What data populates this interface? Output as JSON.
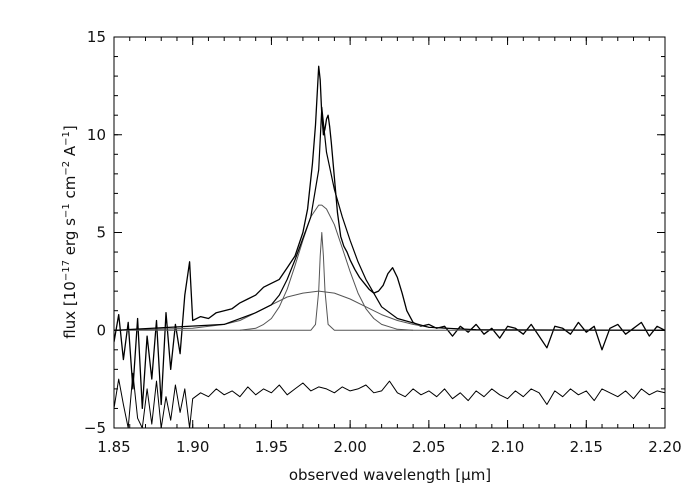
{
  "chart_data": {
    "type": "line",
    "title": "",
    "xlabel": "observed wavelength [μm]",
    "ylabel_parts": [
      "flux [10",
      "−17",
      " erg s",
      "−1",
      " cm",
      "−2",
      " A",
      "−1",
      "]"
    ],
    "xlim": [
      1.85,
      2.2
    ],
    "ylim": [
      -5,
      15
    ],
    "x_ticks": [
      1.85,
      1.9,
      1.95,
      2.0,
      2.05,
      2.1,
      2.15,
      2.2
    ],
    "x_tick_labels": [
      "1.85",
      "1.90",
      "1.95",
      "2.00",
      "2.05",
      "2.10",
      "2.15",
      "2.20"
    ],
    "y_ticks": [
      -5,
      0,
      5,
      10,
      15
    ],
    "y_tick_labels": [
      "−5",
      "0",
      "5",
      "10",
      "15"
    ],
    "grid": false,
    "legend": "none",
    "colors": {
      "observed": "#000000",
      "components": "#555555",
      "residual": "#000000"
    },
    "series": [
      {
        "x": [
          1.85,
          1.853,
          1.856,
          1.859,
          1.862,
          1.865,
          1.868,
          1.871,
          1.874,
          1.877,
          1.88,
          1.883,
          1.886,
          1.889,
          1.892,
          1.895,
          1.898,
          1.9,
          1.905,
          1.91,
          1.915,
          1.92,
          1.925,
          1.93,
          1.935,
          1.94,
          1.945,
          1.95,
          1.955,
          1.96,
          1.965,
          1.97,
          1.973,
          1.976,
          1.978,
          1.98,
          1.981,
          1.982,
          1.983,
          1.984,
          1.985,
          1.986,
          1.987,
          1.988,
          1.99,
          1.992,
          1.994,
          1.996,
          1.998,
          2.0,
          2.003,
          2.006,
          2.009,
          2.012,
          2.015,
          2.018,
          2.021,
          2.024,
          2.027,
          2.03,
          2.033,
          2.036,
          2.04,
          2.045,
          2.05,
          2.055,
          2.06,
          2.065,
          2.07,
          2.075,
          2.08,
          2.085,
          2.09,
          2.095,
          2.1,
          2.105,
          2.11,
          2.115,
          2.12,
          2.125,
          2.13,
          2.135,
          2.14,
          2.145,
          2.15,
          2.155,
          2.16,
          2.165,
          2.17,
          2.175,
          2.18,
          2.185,
          2.19,
          2.195,
          2.2
        ],
        "y": [
          -0.6,
          0.8,
          -1.5,
          0.4,
          -3.0,
          0.6,
          -4.0,
          -0.3,
          -2.5,
          0.5,
          -3.8,
          0.9,
          -2.0,
          0.3,
          -1.2,
          1.8,
          3.5,
          0.5,
          0.7,
          0.6,
          0.9,
          1.0,
          1.1,
          1.4,
          1.6,
          1.8,
          2.2,
          2.4,
          2.6,
          3.2,
          3.8,
          5.0,
          6.2,
          8.5,
          10.5,
          13.5,
          12.8,
          11.0,
          10.0,
          10.3,
          10.8,
          11.0,
          10.4,
          9.6,
          7.8,
          6.0,
          4.8,
          4.3,
          4.0,
          3.6,
          3.1,
          2.7,
          2.4,
          2.1,
          1.9,
          2.0,
          2.3,
          2.9,
          3.2,
          2.7,
          1.9,
          1.0,
          0.4,
          0.2,
          0.3,
          0.1,
          0.2,
          -0.3,
          0.2,
          -0.1,
          0.3,
          -0.2,
          0.1,
          -0.4,
          0.2,
          0.1,
          -0.2,
          0.3,
          -0.3,
          -0.9,
          0.2,
          0.1,
          -0.2,
          0.4,
          -0.1,
          0.2,
          -1.0,
          0.1,
          0.3,
          -0.2,
          0.1,
          0.4,
          -0.3,
          0.2,
          0.0
        ]
      },
      {
        "x": [
          1.85,
          1.9,
          1.92,
          1.93,
          1.94,
          1.95,
          1.96,
          1.97,
          1.98,
          1.99,
          2.0,
          2.01,
          2.02,
          2.03,
          2.04,
          2.05,
          2.06,
          2.08,
          2.1,
          2.15,
          2.2
        ],
        "y": [
          0.0,
          0.1,
          0.3,
          0.5,
          0.9,
          1.3,
          1.7,
          1.9,
          2.0,
          1.9,
          1.6,
          1.2,
          0.8,
          0.5,
          0.3,
          0.15,
          0.1,
          0.03,
          0.0,
          0.0,
          0.0
        ]
      },
      {
        "x": [
          1.93,
          1.94,
          1.945,
          1.95,
          1.955,
          1.96,
          1.965,
          1.97,
          1.975,
          1.98,
          1.982,
          1.985,
          1.99,
          1.995,
          2.0,
          2.005,
          2.01,
          2.015,
          2.02,
          2.03,
          2.04
        ],
        "y": [
          0.0,
          0.1,
          0.3,
          0.6,
          1.2,
          2.1,
          3.3,
          4.6,
          5.8,
          6.4,
          6.4,
          6.2,
          5.4,
          4.2,
          3.0,
          1.9,
          1.1,
          0.6,
          0.3,
          0.05,
          0.0
        ]
      },
      {
        "x": [
          1.85,
          1.975,
          1.978,
          1.98,
          1.981,
          1.982,
          1.983,
          1.984,
          1.986,
          1.99,
          2.2
        ],
        "y": [
          0.0,
          0.0,
          0.3,
          2.0,
          3.8,
          5.0,
          3.8,
          2.0,
          0.3,
          0.0,
          0.0
        ]
      },
      {
        "x": [
          1.85,
          1.92,
          1.94,
          1.95,
          1.955,
          1.96,
          1.965,
          1.97,
          1.975,
          1.98,
          1.982,
          1.985,
          1.99,
          1.995,
          2.0,
          2.005,
          2.01,
          2.02,
          2.03,
          2.05,
          2.08,
          2.2
        ],
        "y": [
          0.0,
          0.3,
          0.9,
          1.3,
          1.8,
          2.6,
          3.6,
          4.7,
          5.8,
          8.2,
          11.4,
          9.1,
          7.2,
          5.8,
          4.6,
          3.5,
          2.6,
          1.2,
          0.6,
          0.15,
          0.03,
          0.0
        ]
      },
      {
        "x": [
          1.85,
          1.853,
          1.856,
          1.859,
          1.862,
          1.865,
          1.868,
          1.871,
          1.874,
          1.877,
          1.88,
          1.883,
          1.886,
          1.889,
          1.892,
          1.895,
          1.898,
          1.9,
          1.905,
          1.91,
          1.915,
          1.92,
          1.925,
          1.93,
          1.935,
          1.94,
          1.945,
          1.95,
          1.955,
          1.96,
          1.965,
          1.97,
          1.975,
          1.98,
          1.985,
          1.99,
          1.995,
          2.0,
          2.005,
          2.01,
          2.015,
          2.02,
          2.025,
          2.03,
          2.035,
          2.04,
          2.045,
          2.05,
          2.055,
          2.06,
          2.065,
          2.07,
          2.075,
          2.08,
          2.085,
          2.09,
          2.095,
          2.1,
          2.105,
          2.11,
          2.115,
          2.12,
          2.125,
          2.13,
          2.135,
          2.14,
          2.145,
          2.15,
          2.155,
          2.16,
          2.165,
          2.17,
          2.175,
          2.18,
          2.185,
          2.19,
          2.195,
          2.2
        ],
        "y": [
          -4.0,
          -2.5,
          -3.8,
          -5.0,
          -2.2,
          -4.5,
          -5.0,
          -3.0,
          -4.8,
          -2.6,
          -5.0,
          -3.4,
          -4.6,
          -2.8,
          -4.2,
          -3.0,
          -5.0,
          -3.5,
          -3.2,
          -3.4,
          -3.0,
          -3.3,
          -3.1,
          -3.4,
          -2.9,
          -3.3,
          -3.0,
          -3.2,
          -2.8,
          -3.3,
          -3.0,
          -2.7,
          -3.1,
          -2.9,
          -3.0,
          -3.2,
          -2.9,
          -3.1,
          -3.0,
          -2.8,
          -3.2,
          -3.1,
          -2.6,
          -3.2,
          -3.4,
          -3.0,
          -3.3,
          -3.1,
          -3.4,
          -3.0,
          -3.5,
          -3.2,
          -3.6,
          -3.1,
          -3.4,
          -3.0,
          -3.3,
          -3.5,
          -3.1,
          -3.4,
          -3.0,
          -3.2,
          -3.8,
          -3.1,
          -3.4,
          -3.0,
          -3.3,
          -3.1,
          -3.6,
          -3.0,
          -3.2,
          -3.4,
          -3.1,
          -3.5,
          -3.0,
          -3.3,
          -3.1,
          -3.2
        ]
      }
    ]
  }
}
